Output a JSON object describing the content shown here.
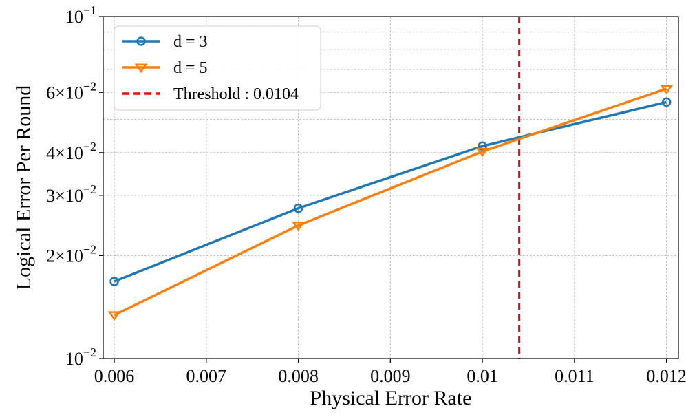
{
  "chart_data": {
    "type": "line",
    "title": "",
    "xlabel": "Physical Error Rate",
    "ylabel": "Logical Error Per Round",
    "x_scale": "linear",
    "y_scale": "log",
    "xlim": [
      0.00588,
      0.01213
    ],
    "ylim": [
      0.01,
      0.1
    ],
    "grid": true,
    "legend_position": "top-left",
    "x_ticks": [
      {
        "value": 0.006,
        "label": "0.006"
      },
      {
        "value": 0.007,
        "label": "0.007"
      },
      {
        "value": 0.008,
        "label": "0.008"
      },
      {
        "value": 0.009,
        "label": "0.009"
      },
      {
        "value": 0.01,
        "label": "0.01"
      },
      {
        "value": 0.011,
        "label": "0.011"
      },
      {
        "value": 0.012,
        "label": "0.012"
      }
    ],
    "y_ticks": [
      {
        "value": 0.01,
        "mantissa": "",
        "base": "10",
        "exponent": "−2"
      },
      {
        "value": 0.02,
        "mantissa": "2×",
        "base": "10",
        "exponent": "−2"
      },
      {
        "value": 0.03,
        "mantissa": "3×",
        "base": "10",
        "exponent": "−2"
      },
      {
        "value": 0.04,
        "mantissa": "4×",
        "base": "10",
        "exponent": "−2"
      },
      {
        "value": 0.06,
        "mantissa": "6×",
        "base": "10",
        "exponent": "−2"
      },
      {
        "value": 0.1,
        "mantissa": "",
        "base": "10",
        "exponent": "−1"
      }
    ],
    "y_minor_grid": [
      0.05,
      0.07,
      0.08,
      0.09
    ],
    "series": [
      {
        "name": "d = 3",
        "color": "#1f77b4",
        "marker": "circle",
        "x": [
          0.006,
          0.008,
          0.01,
          0.012
        ],
        "y": [
          0.0168,
          0.0275,
          0.0418,
          0.0562
        ]
      },
      {
        "name": "d = 5",
        "color": "#ff7f0e",
        "marker": "triangle-down",
        "x": [
          0.006,
          0.008,
          0.01,
          0.012
        ],
        "y": [
          0.0134,
          0.0245,
          0.0403,
          0.0615
        ]
      }
    ],
    "threshold": {
      "label": "Threshold : 0.0104",
      "value": 0.0104,
      "color": "#ff0000",
      "style": "dashed"
    }
  }
}
